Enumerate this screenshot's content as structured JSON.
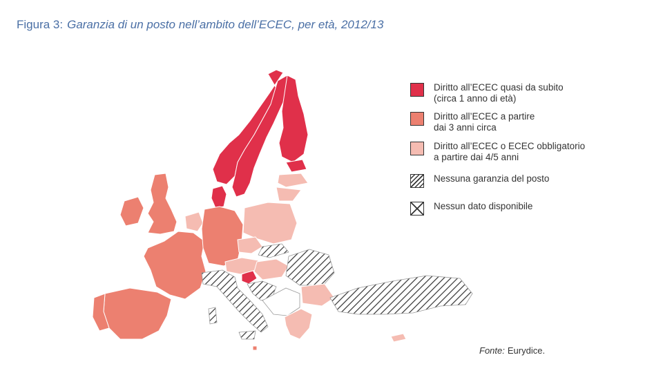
{
  "header": {
    "figure_label": "Figura 3:",
    "caption": "Garanzia di un posto nell’ambito dell’ECEC, per età, 2012/13"
  },
  "legend": {
    "items": [
      {
        "key": "from-1",
        "label": "Diritto all’ECEC quasi da subito\n(circa 1 anno di età)",
        "swatch": "solid",
        "color": "#e0304a"
      },
      {
        "key": "from-3",
        "label": "Diritto all’ECEC a partire\ndai 3 anni circa",
        "swatch": "solid",
        "color": "#ec8070"
      },
      {
        "key": "from-4-5",
        "label": "Diritto all’ECEC o ECEC obbligatorio\na partire dai 4/5 anni",
        "swatch": "solid",
        "color": "#f5bcb2"
      },
      {
        "key": "no-guarantee",
        "label": "Nessuna garanzia del posto",
        "swatch": "hatch",
        "color": "#ffffff"
      },
      {
        "key": "no-data",
        "label": "Nessun dato disponibile",
        "swatch": "cross",
        "color": "#ffffff"
      }
    ]
  },
  "map": {
    "colors": {
      "from-1": "#e0304a",
      "from-3": "#ec8070",
      "from-4-5": "#f5bcb2",
      "no-guarantee-hatch": "#333333",
      "background-land": "#ffffff"
    }
  },
  "source": {
    "label": "Fonte:",
    "text": "Eurydice."
  }
}
